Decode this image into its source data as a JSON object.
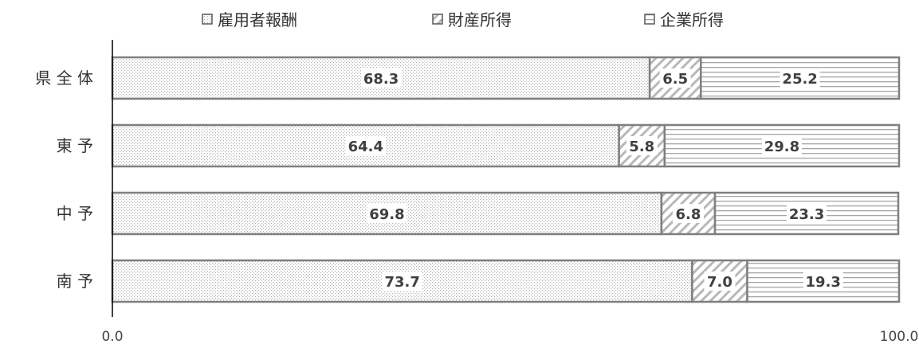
{
  "chart_data": {
    "type": "bar",
    "orientation": "horizontal",
    "stacked": true,
    "categories": [
      "県 全 体",
      "東 予",
      "中 予",
      "南 予"
    ],
    "series": [
      {
        "name": "雇用者報酬",
        "values": [
          68.3,
          64.4,
          69.8,
          73.7
        ],
        "pattern": "dots"
      },
      {
        "name": "財産所得",
        "values": [
          6.5,
          5.8,
          6.8,
          7.0
        ],
        "pattern": "diagonal"
      },
      {
        "name": "企業所得",
        "values": [
          25.2,
          29.8,
          23.3,
          19.3
        ],
        "pattern": "horizontal"
      }
    ],
    "xlim": [
      0,
      100
    ],
    "x_ticks": [
      "0.0",
      "100.0"
    ],
    "legend_position": "top",
    "grid": false,
    "colors": {
      "border": "#7f7f7f",
      "pattern": "#a6a6a6",
      "text": "#404040"
    }
  }
}
